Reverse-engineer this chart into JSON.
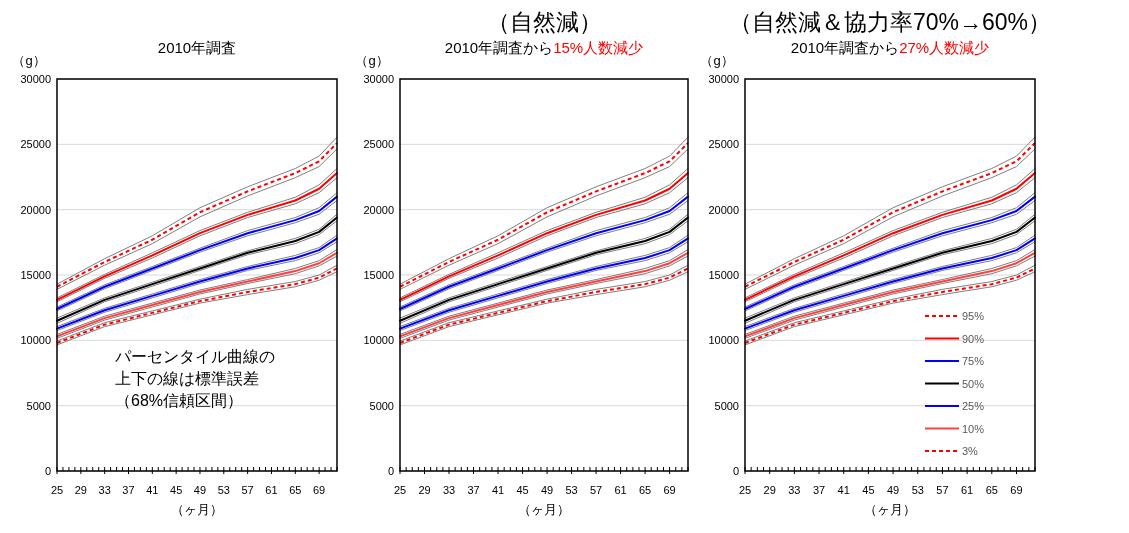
{
  "chart_data": [
    {
      "type": "line",
      "title": "2010年調査",
      "xlabel": "（ヶ月）",
      "ylabel": "（g）",
      "x": [
        25,
        33,
        41,
        49,
        57,
        65,
        69,
        72
      ],
      "xlim": [
        25,
        72
      ],
      "xticks": [
        25,
        29,
        33,
        37,
        41,
        45,
        49,
        53,
        57,
        61,
        65,
        69
      ],
      "ylim": [
        0,
        30000
      ],
      "yticks": [
        0,
        5000,
        10000,
        15000,
        20000,
        25000,
        30000
      ],
      "grid": "y",
      "legend": false,
      "annotations": [
        "パーセンタイル曲線の",
        "上下の線は標準誤差",
        "（68%信頼区間）"
      ],
      "series": [
        {
          "color": "#808080",
          "values": [
            13900,
            15750,
            17400,
            19450,
            21050,
            22450,
            23300,
            24650
          ]
        },
        {
          "color": "#808080",
          "values": [
            14300,
            16250,
            18000,
            20150,
            21750,
            23150,
            24100,
            25550
          ]
        },
        {
          "color": "#808080",
          "values": [
            12950,
            14750,
            16300,
            18000,
            19400,
            20450,
            21300,
            22450
          ]
        },
        {
          "color": "#808080",
          "values": [
            13250,
            15050,
            16700,
            18400,
            19800,
            20950,
            21900,
            23150
          ]
        },
        {
          "color": "#808080",
          "values": [
            12250,
            13950,
            15350,
            16750,
            18000,
            19000,
            19650,
            20700
          ]
        },
        {
          "color": "#808080",
          "values": [
            12550,
            14250,
            15650,
            17050,
            18400,
            19400,
            20150,
            21300
          ]
        },
        {
          "color": "#808080",
          "values": [
            11300,
            12950,
            14150,
            15350,
            16550,
            17400,
            18100,
            19150
          ]
        },
        {
          "color": "#808080",
          "values": [
            11700,
            13250,
            14450,
            15650,
            16850,
            17800,
            18500,
            19650
          ]
        },
        {
          "color": "#808080",
          "values": [
            10750,
            12150,
            13250,
            14350,
            15350,
            16100,
            16700,
            17550
          ]
        },
        {
          "color": "#808080",
          "values": [
            11050,
            12450,
            13550,
            14650,
            15650,
            16500,
            17100,
            18050
          ]
        },
        {
          "color": "#808080",
          "values": [
            10150,
            11550,
            12550,
            13550,
            14350,
            15100,
            15700,
            16450
          ]
        },
        {
          "color": "#808080",
          "values": [
            10450,
            11850,
            12850,
            13850,
            14650,
            15500,
            16100,
            16950
          ]
        },
        {
          "color": "#808080",
          "values": [
            9650,
            11050,
            11950,
            12850,
            13500,
            14100,
            14600,
            15250
          ]
        },
        {
          "color": "#808080",
          "values": [
            9950,
            11350,
            12250,
            13150,
            13900,
            14500,
            15000,
            15750
          ]
        },
        {
          "color": "#ff0000",
          "line_style": "dashed",
          "values": [
            14100,
            16000,
            17700,
            19800,
            21400,
            22800,
            23700,
            25100
          ]
        },
        {
          "color": "#ff0000",
          "line_style": "solid",
          "values": [
            13100,
            14900,
            16500,
            18200,
            19600,
            20700,
            21600,
            22800
          ]
        },
        {
          "color": "#0000ff",
          "line_style": "solid",
          "values": [
            12400,
            14100,
            15500,
            16900,
            18200,
            19200,
            19900,
            21000
          ]
        },
        {
          "color": "#000000",
          "line_style": "solid",
          "values": [
            11500,
            13100,
            14300,
            15500,
            16700,
            17600,
            18300,
            19400
          ]
        },
        {
          "color": "#0000ff",
          "line_style": "solid",
          "values": [
            10900,
            12300,
            13400,
            14500,
            15500,
            16300,
            16900,
            17800
          ]
        },
        {
          "color": "#ff4040",
          "line_style": "solid",
          "values": [
            10300,
            11700,
            12700,
            13700,
            14500,
            15300,
            15900,
            16700
          ]
        },
        {
          "color": "#ff0000",
          "line_style": "dashed",
          "values": [
            9800,
            11200,
            12100,
            13000,
            13700,
            14300,
            14800,
            15500
          ]
        }
      ]
    },
    {
      "type": "line",
      "title": "（自然減）",
      "subtitle": [
        "2010年調査から",
        "15%人数減少"
      ],
      "xlabel": "（ヶ月）",
      "ylabel": "（g）",
      "x": [
        25,
        33,
        41,
        49,
        57,
        65,
        69,
        72
      ],
      "xlim": [
        25,
        72
      ],
      "xticks": [
        25,
        29,
        33,
        37,
        41,
        45,
        49,
        53,
        57,
        61,
        65,
        69
      ],
      "ylim": [
        0,
        30000
      ],
      "yticks": [
        0,
        5000,
        10000,
        15000,
        20000,
        25000,
        30000
      ],
      "grid": "y",
      "legend": false,
      "series": [
        {
          "color": "#808080",
          "values": [
            13900,
            15750,
            17400,
            19450,
            21050,
            22450,
            23300,
            24650
          ]
        },
        {
          "color": "#808080",
          "values": [
            14300,
            16250,
            18000,
            20150,
            21750,
            23150,
            24100,
            25550
          ]
        },
        {
          "color": "#808080",
          "values": [
            12950,
            14750,
            16300,
            18000,
            19400,
            20450,
            21300,
            22450
          ]
        },
        {
          "color": "#808080",
          "values": [
            13250,
            15050,
            16700,
            18400,
            19800,
            20950,
            21900,
            23150
          ]
        },
        {
          "color": "#808080",
          "values": [
            12250,
            13950,
            15350,
            16750,
            18000,
            19000,
            19650,
            20700
          ]
        },
        {
          "color": "#808080",
          "values": [
            12550,
            14250,
            15650,
            17050,
            18400,
            19400,
            20150,
            21300
          ]
        },
        {
          "color": "#808080",
          "values": [
            11300,
            12950,
            14150,
            15350,
            16550,
            17400,
            18100,
            19150
          ]
        },
        {
          "color": "#808080",
          "values": [
            11700,
            13250,
            14450,
            15650,
            16850,
            17800,
            18500,
            19650
          ]
        },
        {
          "color": "#808080",
          "values": [
            10750,
            12150,
            13250,
            14350,
            15350,
            16100,
            16700,
            17550
          ]
        },
        {
          "color": "#808080",
          "values": [
            11050,
            12450,
            13550,
            14650,
            15650,
            16500,
            17100,
            18050
          ]
        },
        {
          "color": "#808080",
          "values": [
            10150,
            11550,
            12550,
            13550,
            14350,
            15100,
            15700,
            16450
          ]
        },
        {
          "color": "#808080",
          "values": [
            10450,
            11850,
            12850,
            13850,
            14650,
            15500,
            16100,
            16950
          ]
        },
        {
          "color": "#808080",
          "values": [
            9650,
            11050,
            11950,
            12850,
            13500,
            14100,
            14600,
            15250
          ]
        },
        {
          "color": "#808080",
          "values": [
            9950,
            11350,
            12250,
            13150,
            13900,
            14500,
            15000,
            15750
          ]
        },
        {
          "color": "#ff0000",
          "line_style": "dashed",
          "values": [
            14100,
            16000,
            17700,
            19800,
            21400,
            22800,
            23700,
            25100
          ]
        },
        {
          "color": "#ff0000",
          "line_style": "solid",
          "values": [
            13100,
            14900,
            16500,
            18200,
            19600,
            20700,
            21600,
            22800
          ]
        },
        {
          "color": "#0000ff",
          "line_style": "solid",
          "values": [
            12400,
            14100,
            15500,
            16900,
            18200,
            19200,
            19900,
            21000
          ]
        },
        {
          "color": "#000000",
          "line_style": "solid",
          "values": [
            11500,
            13100,
            14300,
            15500,
            16700,
            17600,
            18300,
            19400
          ]
        },
        {
          "color": "#0000ff",
          "line_style": "solid",
          "values": [
            10900,
            12300,
            13400,
            14500,
            15500,
            16300,
            16900,
            17800
          ]
        },
        {
          "color": "#ff4040",
          "line_style": "solid",
          "values": [
            10300,
            11700,
            12700,
            13700,
            14500,
            15300,
            15900,
            16700
          ]
        },
        {
          "color": "#ff0000",
          "line_style": "dashed",
          "values": [
            9800,
            11200,
            12100,
            13000,
            13700,
            14300,
            14800,
            15500
          ]
        }
      ]
    },
    {
      "type": "line",
      "title": "（自然減＆協力率70%→60%）",
      "subtitle": [
        "2010年調査から",
        "27%人数減少"
      ],
      "xlabel": "（ヶ月）",
      "ylabel": "（g）",
      "x": [
        25,
        33,
        41,
        49,
        57,
        65,
        69,
        72
      ],
      "xlim": [
        25,
        72
      ],
      "xticks": [
        25,
        29,
        33,
        37,
        41,
        45,
        49,
        53,
        57,
        61,
        65,
        69
      ],
      "ylim": [
        0,
        30000
      ],
      "yticks": [
        0,
        5000,
        10000,
        15000,
        20000,
        25000,
        30000
      ],
      "grid": "y",
      "legend": "bottom right",
      "series": [
        {
          "color": "#808080",
          "values": [
            13900,
            15750,
            17400,
            19450,
            21050,
            22450,
            23300,
            24650
          ]
        },
        {
          "color": "#808080",
          "values": [
            14300,
            16250,
            18000,
            20150,
            21750,
            23150,
            24100,
            25550
          ]
        },
        {
          "color": "#808080",
          "values": [
            12950,
            14750,
            16300,
            18000,
            19400,
            20450,
            21300,
            22450
          ]
        },
        {
          "color": "#808080",
          "values": [
            13250,
            15050,
            16700,
            18400,
            19800,
            20950,
            21900,
            23150
          ]
        },
        {
          "color": "#808080",
          "values": [
            12250,
            13950,
            15350,
            16750,
            18000,
            19000,
            19650,
            20700
          ]
        },
        {
          "color": "#808080",
          "values": [
            12550,
            14250,
            15650,
            17050,
            18400,
            19400,
            20150,
            21300
          ]
        },
        {
          "color": "#808080",
          "values": [
            11300,
            12950,
            14150,
            15350,
            16550,
            17400,
            18100,
            19150
          ]
        },
        {
          "color": "#808080",
          "values": [
            11700,
            13250,
            14450,
            15650,
            16850,
            17800,
            18500,
            19650
          ]
        },
        {
          "color": "#808080",
          "values": [
            10750,
            12150,
            13250,
            14350,
            15350,
            16100,
            16700,
            17550
          ]
        },
        {
          "color": "#808080",
          "values": [
            11050,
            12450,
            13550,
            14650,
            15650,
            16500,
            17100,
            18050
          ]
        },
        {
          "color": "#808080",
          "values": [
            10150,
            11550,
            12550,
            13550,
            14350,
            15100,
            15700,
            16450
          ]
        },
        {
          "color": "#808080",
          "values": [
            10450,
            11850,
            12850,
            13850,
            14650,
            15500,
            16100,
            16950
          ]
        },
        {
          "color": "#808080",
          "values": [
            9650,
            11050,
            11950,
            12850,
            13500,
            14100,
            14600,
            15250
          ]
        },
        {
          "color": "#808080",
          "values": [
            9950,
            11350,
            12250,
            13150,
            13900,
            14500,
            15000,
            15750
          ]
        },
        {
          "name": "95%",
          "color": "#ff0000",
          "line_style": "dashed",
          "values": [
            14100,
            16000,
            17700,
            19800,
            21400,
            22800,
            23700,
            25100
          ]
        },
        {
          "name": "90%",
          "color": "#ff0000",
          "line_style": "solid",
          "values": [
            13100,
            14900,
            16500,
            18200,
            19600,
            20700,
            21600,
            22800
          ]
        },
        {
          "name": "75%",
          "color": "#0000ff",
          "line_style": "solid",
          "values": [
            12400,
            14100,
            15500,
            16900,
            18200,
            19200,
            19900,
            21000
          ]
        },
        {
          "name": "50%",
          "color": "#000000",
          "line_style": "solid",
          "values": [
            11500,
            13100,
            14300,
            15500,
            16700,
            17600,
            18300,
            19400
          ]
        },
        {
          "name": "25%",
          "color": "#0000ff",
          "line_style": "solid",
          "values": [
            10900,
            12300,
            13400,
            14500,
            15500,
            16300,
            16900,
            17800
          ]
        },
        {
          "name": "10%",
          "color": "#ff4040",
          "line_style": "solid",
          "values": [
            10300,
            11700,
            12700,
            13700,
            14500,
            15300,
            15900,
            16700
          ]
        },
        {
          "name": "3%",
          "color": "#ff0000",
          "line_style": "dashed",
          "values": [
            9800,
            11200,
            12100,
            13000,
            13700,
            14300,
            14800,
            15500
          ]
        }
      ]
    }
  ]
}
